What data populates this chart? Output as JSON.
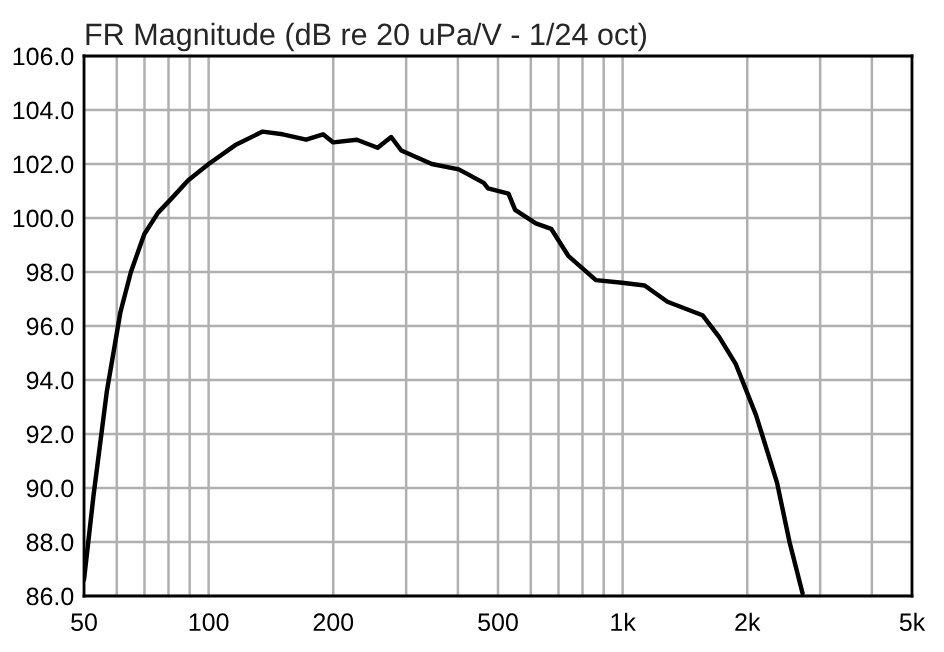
{
  "chart_data": {
    "type": "line",
    "title": "FR Magnitude (dB re 20 uPa/V - 1/24 oct)",
    "log": "x",
    "grid": true,
    "marker": "none",
    "line_style": "solid",
    "xlim": [
      50,
      5000
    ],
    "ylim": [
      86,
      106
    ],
    "xticks": [
      50,
      100,
      200,
      500,
      {
        "value": 1000,
        "label": "1k"
      },
      {
        "value": 2000,
        "label": "2k"
      },
      {
        "value": 5000,
        "label": "5k"
      },
      {
        "value": 60,
        "label": null
      },
      {
        "value": 70,
        "label": null
      },
      {
        "value": 80,
        "label": null
      },
      {
        "value": 90,
        "label": null
      },
      {
        "value": 300,
        "label": null
      },
      {
        "value": 400,
        "label": null
      },
      {
        "value": 600,
        "label": null
      },
      {
        "value": 700,
        "label": null
      },
      {
        "value": 800,
        "label": null
      },
      {
        "value": 900,
        "label": null
      },
      {
        "value": 3000,
        "label": null
      },
      {
        "value": 4000,
        "label": null
      }
    ],
    "yticks": [
      {
        "value": 86,
        "label": "86.0"
      },
      {
        "value": 88,
        "label": "88.0"
      },
      {
        "value": 90,
        "label": "90.0"
      },
      {
        "value": 92,
        "label": "92.0"
      },
      {
        "value": 94,
        "label": "94.0"
      },
      {
        "value": 96,
        "label": "96.0"
      },
      {
        "value": 98,
        "label": "98.0"
      },
      {
        "value": 100,
        "label": "100.0"
      },
      {
        "value": 102,
        "label": "102.0"
      },
      {
        "value": 104,
        "label": "104.0"
      },
      {
        "value": 106,
        "label": "106.0"
      }
    ],
    "series": [
      {
        "color": "#000000",
        "x": [
          50,
          52.7,
          56.8,
          61.2,
          64.9,
          69.9,
          75.5,
          81.1,
          89.3,
          100,
          116,
          135,
          151,
          172,
          189,
          200,
          228,
          256,
          276,
          292,
          346,
          402,
          462,
          473,
          530,
          550,
          617,
          672,
          739,
          862,
          997,
          1130,
          1283,
          1559,
          1710,
          1875,
          2100,
          2360,
          2530,
          2720
        ],
        "values": [
          86.6,
          89.7,
          93.6,
          96.5,
          98.0,
          99.4,
          100.2,
          100.7,
          101.4,
          102.0,
          102.7,
          103.2,
          103.1,
          102.9,
          103.1,
          102.8,
          102.9,
          102.6,
          103.0,
          102.5,
          102.0,
          101.8,
          101.3,
          101.1,
          100.9,
          100.3,
          99.8,
          99.6,
          98.6,
          97.7,
          97.6,
          97.5,
          96.9,
          96.4,
          95.6,
          94.6,
          92.7,
          90.2,
          88.0,
          86.1
        ]
      }
    ]
  }
}
